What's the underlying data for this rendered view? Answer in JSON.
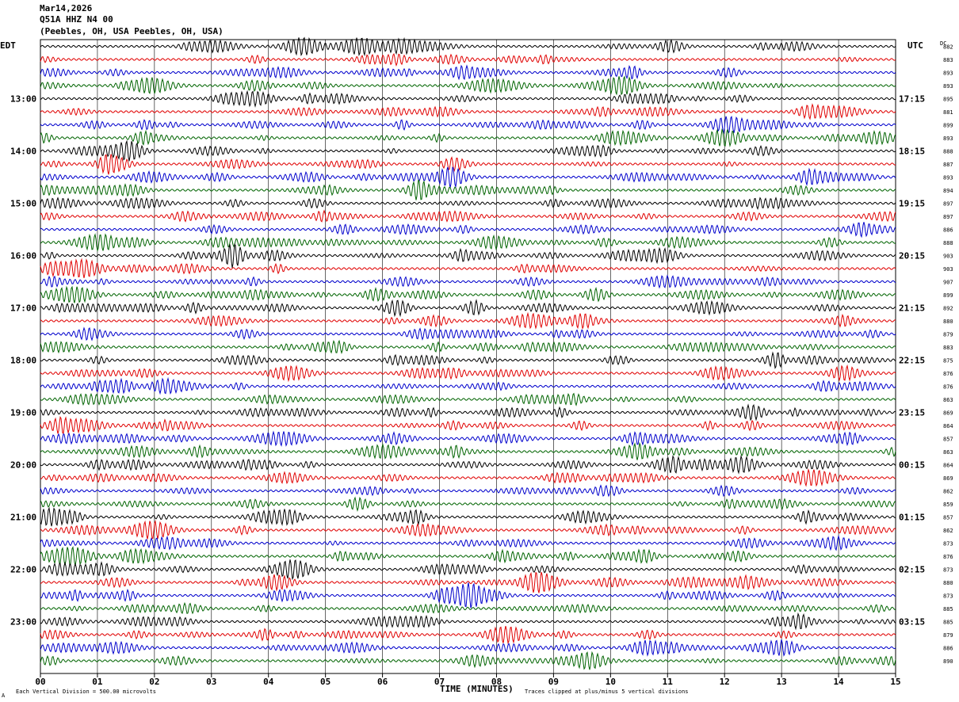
{
  "header": {
    "date": "Mar14,2026",
    "station": "Q51A HHZ N4 00",
    "location": "(Peebles, OH, USA Peebles, OH, USA)"
  },
  "labels": {
    "left_tz": "EDT",
    "right_tz": "UTC",
    "dc_header": "DC"
  },
  "footer": {
    "scale_note": "Each Vertical Division =  500.00 microvolts",
    "clip_note": "Traces clipped at plus/minus 5 vertical divisions",
    "corner_mark": "A"
  },
  "colors": {
    "trace_cycle": [
      "#000000",
      "#e00000",
      "#0000cc",
      "#006400"
    ],
    "grid": "#000000"
  },
  "chart_data": {
    "type": "line",
    "title": "Mar14,2026",
    "xlabel": "TIME (MINUTES)",
    "ylabel": "",
    "xlim": [
      0,
      15
    ],
    "x_ticks": [
      "00",
      "01",
      "02",
      "03",
      "04",
      "05",
      "06",
      "07",
      "08",
      "09",
      "10",
      "11",
      "12",
      "13",
      "14",
      "15"
    ],
    "grid": true,
    "rows_per_hour": 4,
    "left_hour_labels": [
      {
        "row": 4,
        "label": "13:00"
      },
      {
        "row": 8,
        "label": "14:00"
      },
      {
        "row": 12,
        "label": "15:00"
      },
      {
        "row": 16,
        "label": "16:00"
      },
      {
        "row": 20,
        "label": "17:00"
      },
      {
        "row": 24,
        "label": "18:00"
      },
      {
        "row": 28,
        "label": "19:00"
      },
      {
        "row": 32,
        "label": "20:00"
      },
      {
        "row": 36,
        "label": "21:00"
      },
      {
        "row": 40,
        "label": "22:00"
      },
      {
        "row": 44,
        "label": "23:00"
      }
    ],
    "right_hour_labels": [
      {
        "row": 4,
        "label": "17:15"
      },
      {
        "row": 8,
        "label": "18:15"
      },
      {
        "row": 12,
        "label": "19:15"
      },
      {
        "row": 16,
        "label": "20:15"
      },
      {
        "row": 20,
        "label": "21:15"
      },
      {
        "row": 24,
        "label": "22:15"
      },
      {
        "row": 28,
        "label": "23:15"
      },
      {
        "row": 32,
        "label": "00:15"
      },
      {
        "row": 36,
        "label": "01:15"
      },
      {
        "row": 40,
        "label": "02:15"
      },
      {
        "row": 44,
        "label": "03:15"
      }
    ],
    "dc_offsets": [
      "882",
      "883",
      "893",
      "893",
      "895",
      "881",
      "899",
      "893",
      "888",
      "887",
      "893",
      "894",
      "897",
      "897",
      "886",
      "888",
      "903",
      "903",
      "907",
      "899",
      "892",
      "880",
      "879",
      "883",
      "875",
      "876",
      "876",
      "863",
      "869",
      "864",
      "857",
      "863",
      "864",
      "869",
      "862",
      "859",
      "857",
      "862",
      "873",
      "876",
      "873",
      "880",
      "873",
      "885",
      "885",
      "879",
      "886",
      "890"
    ]
  }
}
